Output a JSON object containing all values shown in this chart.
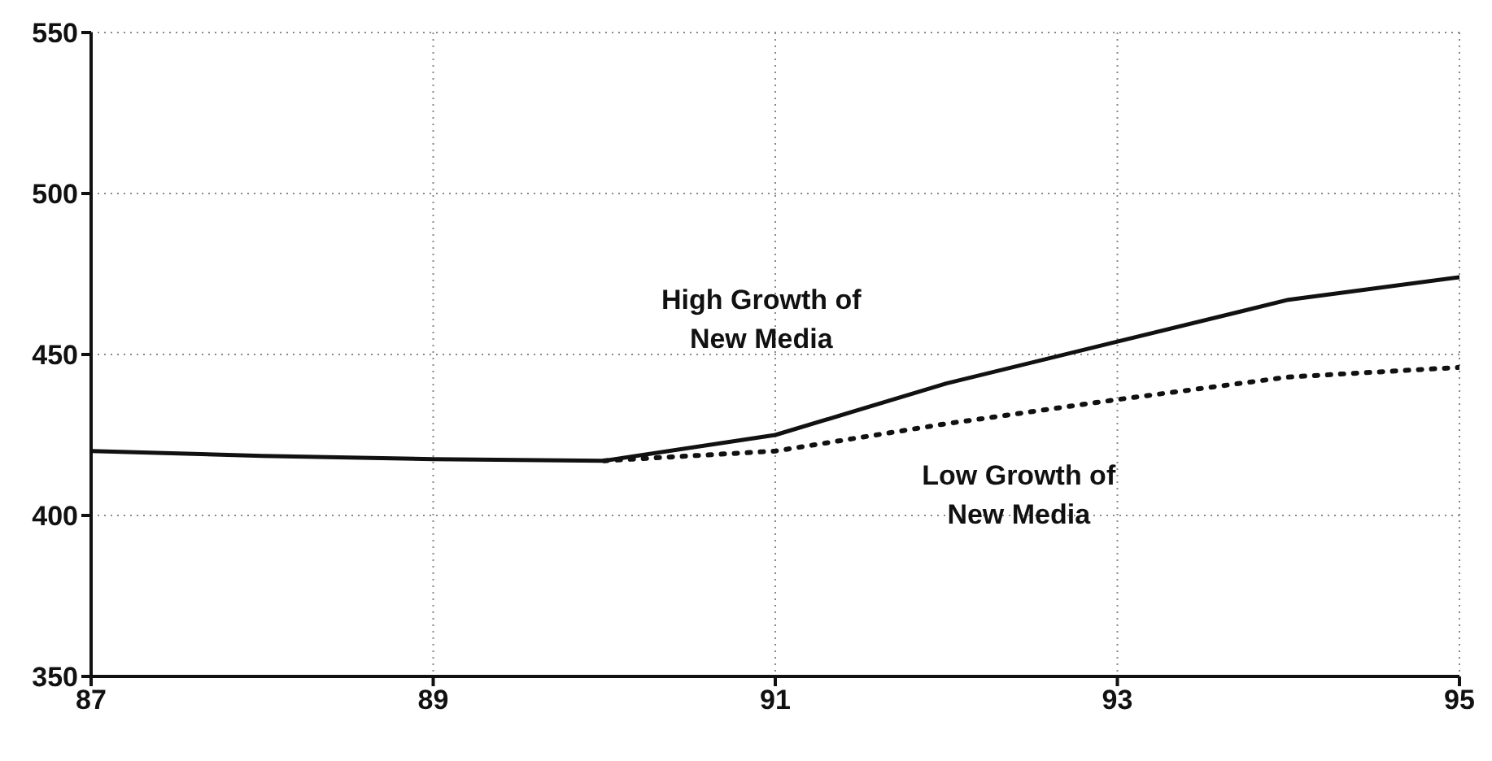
{
  "chart_data": {
    "type": "line",
    "x": [
      87,
      88,
      89,
      90,
      91,
      92,
      93,
      94,
      95
    ],
    "series": [
      {
        "name": "High Growth of New Media",
        "color": "#111111",
        "line_style": "solid",
        "values": [
          420,
          418.5,
          417.5,
          417,
          425,
          441,
          454,
          467,
          474
        ]
      },
      {
        "name": "Low Growth of New Media",
        "color": "#111111",
        "line_style": "dotted",
        "values": [
          null,
          null,
          null,
          417,
          420,
          428.5,
          436,
          443,
          446
        ]
      }
    ],
    "xlim": [
      87,
      95
    ],
    "xticks": [
      87,
      89,
      91,
      93,
      95
    ],
    "ylim": [
      350,
      550
    ],
    "yticks": [
      350,
      400,
      450,
      500,
      550
    ],
    "grid": true,
    "marker": "none"
  }
}
